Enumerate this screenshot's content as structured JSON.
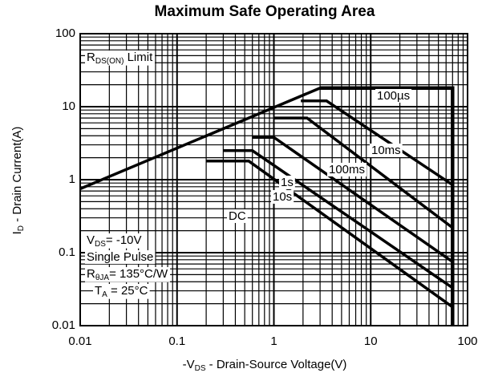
{
  "chart_data": {
    "type": "line",
    "title": "Maximum Safe Operating Area",
    "xlabel": [
      "-V",
      "DS",
      " - Drain-Source Voltage(V)"
    ],
    "ylabel": [
      "I",
      "D",
      " - Drain Current(A)"
    ],
    "xscale": "log",
    "yscale": "log",
    "xlim": [
      0.01,
      100
    ],
    "ylim": [
      0.01,
      100
    ],
    "xticks": [
      0.01,
      0.1,
      1,
      10,
      100
    ],
    "yticks": [
      0.01,
      0.1,
      1,
      10,
      100
    ],
    "xminorticks": [
      0.02,
      0.03,
      0.04,
      0.05,
      0.06,
      0.07,
      0.08,
      0.09,
      0.2,
      0.3,
      0.4,
      0.5,
      0.6,
      0.7,
      0.8,
      0.9,
      2,
      3,
      4,
      5,
      6,
      7,
      8,
      9,
      20,
      30,
      40,
      50,
      60,
      70,
      80,
      90
    ],
    "yminorticks": [
      0.02,
      0.03,
      0.04,
      0.05,
      0.06,
      0.07,
      0.08,
      0.09,
      0.2,
      0.3,
      0.4,
      0.5,
      0.6,
      0.7,
      0.8,
      0.9,
      2,
      3,
      4,
      5,
      6,
      7,
      8,
      9,
      20,
      30,
      40,
      50,
      60,
      70,
      80,
      90
    ],
    "grid": true,
    "series": [
      {
        "color": "#000000",
        "x": [
          0.01,
          3
        ],
        "values": [
          0.75,
          18
        ]
      },
      {
        "color": "#000000",
        "x": [
          3,
          70,
          70
        ],
        "values": [
          18,
          18,
          0.01
        ]
      },
      {
        "color": "#000000",
        "x": [
          1.9,
          3.5,
          70
        ],
        "values": [
          12,
          12,
          0.85
        ]
      },
      {
        "color": "#000000",
        "x": [
          1,
          2.2,
          70
        ],
        "values": [
          7,
          7,
          0.22
        ]
      },
      {
        "color": "#000000",
        "x": [
          0.6,
          1,
          70
        ],
        "values": [
          3.8,
          3.8,
          0.075
        ]
      },
      {
        "color": "#000000",
        "x": [
          0.3,
          0.6,
          70
        ],
        "values": [
          2.5,
          2.5,
          0.033
        ]
      },
      {
        "color": "#000000",
        "x": [
          0.2,
          0.55,
          70
        ],
        "values": [
          1.8,
          1.8,
          0.018
        ]
      }
    ],
    "annotations": [
      [
        "R",
        "DS(ON)",
        " Limit"
      ],
      [
        "100µs"
      ],
      [
        "10ms"
      ],
      [
        "100ms"
      ],
      [
        "1s"
      ],
      [
        "10s"
      ],
      [
        "DC"
      ],
      [
        "V",
        "DS",
        "= -10V"
      ],
      [
        "Single Pulse"
      ],
      [
        "R",
        "θJA",
        "= 135°C/W"
      ],
      [
        "T",
        "A",
        " = 25°C"
      ]
    ]
  }
}
